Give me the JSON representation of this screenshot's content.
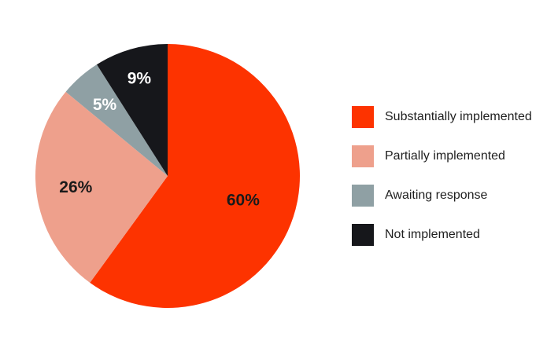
{
  "chart_data": {
    "type": "pie",
    "categories": [
      "Substantially implemented",
      "Partially implemented",
      "Awaiting response",
      "Not implemented"
    ],
    "values": [
      60,
      26,
      5,
      9
    ],
    "labels": [
      "60%",
      "26%",
      "5%",
      "9%"
    ],
    "colors": [
      "#fd3300",
      "#eea08c",
      "#8fa0a4",
      "#16171b"
    ],
    "label_colors": [
      "#1a1a1a",
      "#1a1a1a",
      "#ffffff",
      "#ffffff"
    ],
    "legend_position": "right",
    "start": "top",
    "direction": "clockwise"
  }
}
